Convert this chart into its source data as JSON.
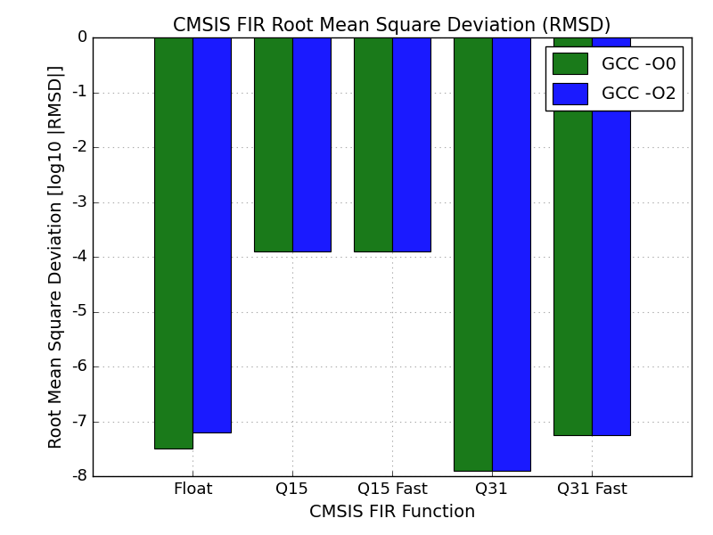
{
  "title": "CMSIS FIR Root Mean Square Deviation (RMSD)",
  "xlabel": "CMSIS FIR Function",
  "ylabel": "Root Mean Square Deviation [log10 |RMSD|]",
  "categories": [
    "Float",
    "Q15",
    "Q15 Fast",
    "Q31",
    "Q31 Fast"
  ],
  "gcc_o0": [
    -7.5,
    -3.9,
    -3.9,
    -7.9,
    -7.25
  ],
  "gcc_o2": [
    -7.2,
    -3.9,
    -3.9,
    -7.9,
    -7.25
  ],
  "color_o0": "#1a7a1a",
  "color_o2": "#1a1aff",
  "legend_o0": "GCC -O0",
  "legend_o2": "GCC -O2",
  "ylim": [
    -8,
    0
  ],
  "yticks": [
    0,
    -1,
    -2,
    -3,
    -4,
    -5,
    -6,
    -7,
    -8
  ],
  "bar_width": 0.38,
  "background_color": "#ffffff",
  "grid_color": "#aaaaaa",
  "title_fontsize": 15,
  "label_fontsize": 14,
  "tick_fontsize": 13,
  "legend_fontsize": 14
}
